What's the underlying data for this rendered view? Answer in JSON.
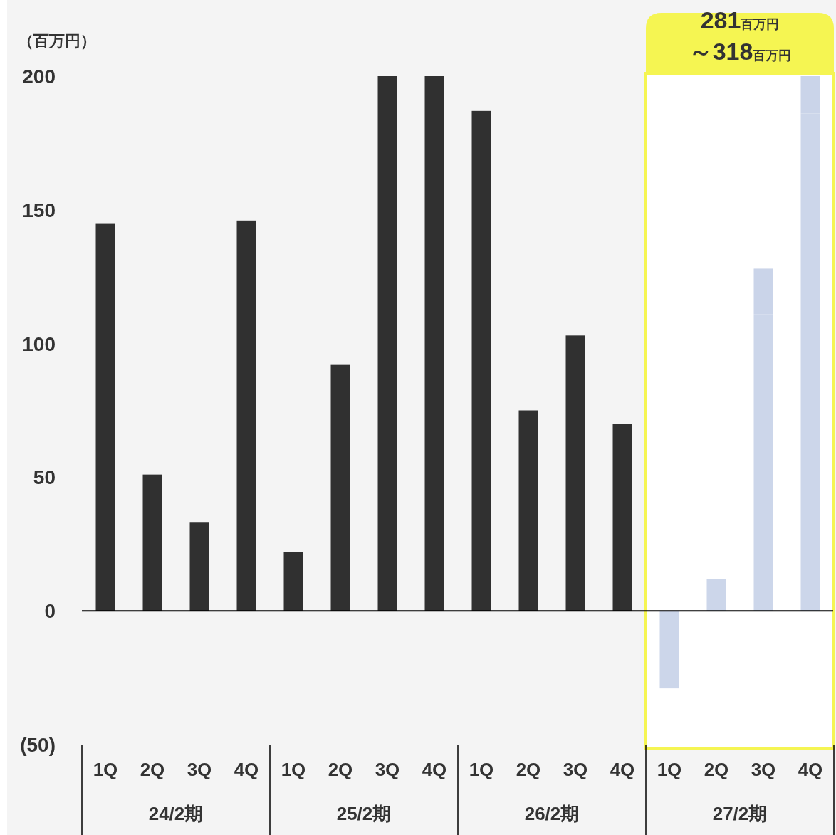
{
  "chart_data": {
    "type": "bar",
    "stacked": true,
    "ylabel": "（百万円）",
    "categories": [
      "1Q",
      "2Q",
      "3Q",
      "4Q",
      "1Q",
      "2Q",
      "3Q",
      "4Q",
      "1Q",
      "2Q",
      "3Q",
      "4Q",
      "1Q",
      "2Q",
      "3Q",
      "4Q"
    ],
    "series": [
      {
        "color": "#303030",
        "values": [
          145,
          51,
          33,
          146,
          22,
          92,
          200,
          200,
          187,
          75,
          103,
          70,
          null,
          null,
          null,
          null
        ]
      },
      {
        "color": "#ccd6ea",
        "values": [
          null,
          null,
          null,
          null,
          null,
          null,
          null,
          null,
          null,
          null,
          null,
          null,
          -29,
          12,
          111,
          186
        ]
      },
      {
        "color": "#cad4e9",
        "values": [
          null,
          null,
          null,
          null,
          null,
          null,
          null,
          null,
          null,
          null,
          null,
          null,
          null,
          null,
          17,
          14
        ]
      }
    ],
    "ylim": [
      -50,
      200
    ],
    "yticks": [
      200,
      150,
      100,
      50,
      0,
      {
        "value": -50,
        "label": "(50)"
      }
    ],
    "annotations": [
      "24/2期",
      "25/2期",
      "26/2期",
      "27/2期",
      "281百万円",
      "～318百万円"
    ]
  }
}
